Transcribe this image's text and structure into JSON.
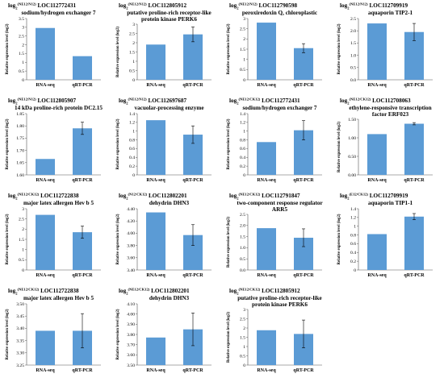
{
  "figure": {
    "background": "#ffffff",
    "bar_color": "#5b9bd5"
  },
  "chart_data": [
    {
      "type": "bar",
      "title_prefix": "log",
      "title_sup": "(NE12/N12)",
      "title_sub": "2",
      "title_line1": "LOC112772431",
      "title_line2": "sodium/hydrogen exchanger 7",
      "ylabel": "Relative expression level (log2)",
      "categories": [
        "RNA-seq",
        "qRT-PCR"
      ],
      "values": [
        2.96,
        1.35
      ],
      "errors": [
        0,
        0
      ],
      "ylim": [
        0,
        3.5
      ],
      "yticks": [
        "0",
        "0.5",
        "1",
        "1.5",
        "2",
        "2.5",
        "3",
        "3.5"
      ],
      "grid": false
    },
    {
      "type": "bar",
      "title_prefix": "log",
      "title_sup": "(NE12/N12)",
      "title_sub": "2",
      "title_line1": "LOC112805912",
      "title_line2": "putative proline-rich receptor-like protein kinase PERK6",
      "ylabel": "Relative expression level (log2)",
      "categories": [
        "RNA-seq",
        "qRT-PCR"
      ],
      "values": [
        1.9,
        2.45
      ],
      "errors": [
        0,
        0.4
      ],
      "ylim": [
        0,
        3
      ],
      "yticks": [
        "0",
        "0.5",
        "1",
        "1.5",
        "2",
        "2.5",
        "3"
      ],
      "grid": false
    },
    {
      "type": "bar",
      "title_prefix": "log",
      "title_sup": "(NE12/N12)",
      "title_sub": "2",
      "title_line1": "LOC112790598",
      "title_line2": "peroxiredoxin Q, chloroplastic",
      "ylabel": "Relative expression level (log2)",
      "categories": [
        "RNA-seq",
        "qRT-PCR"
      ],
      "values": [
        2.8,
        1.55
      ],
      "errors": [
        0,
        0.22
      ],
      "ylim": [
        0,
        3
      ],
      "yticks": [
        "0",
        "0.5",
        "1",
        "1.5",
        "2",
        "2.5",
        "3"
      ],
      "grid": false
    },
    {
      "type": "bar",
      "title_prefix": "log",
      "title_sup": "(NE12/N12)",
      "title_sub": "2",
      "title_line1": "LOC112709919",
      "title_line2": "aquaporin TIP2-1",
      "ylabel": "Relative expression level (log2)",
      "categories": [
        "RNA-seq",
        "qRT-PCR"
      ],
      "values": [
        2.3,
        1.95
      ],
      "errors": [
        0,
        0.35
      ],
      "ylim": [
        0,
        2.5
      ],
      "yticks": [
        "0.0",
        "0.5",
        "1.0",
        "1.5",
        "2.0",
        "2.5"
      ],
      "grid": false
    },
    {
      "type": "bar",
      "title_prefix": "log",
      "title_sup": "(NE12/N12)",
      "title_sub": "2",
      "title_line1": "LOC112805907",
      "title_line2": "14 kDa proline-rich protein DC2.15",
      "ylabel": "Relative expression level (log2)",
      "categories": [
        "RNA-seq",
        "qRT-PCR"
      ],
      "values": [
        1.665,
        1.79
      ],
      "errors": [
        0,
        0.025
      ],
      "ylim": [
        1.6,
        1.85
      ],
      "yticks": [
        "1.60",
        "1.65",
        "1.70",
        "1.75",
        "1.80",
        "1.85"
      ],
      "grid": false
    },
    {
      "type": "bar",
      "title_prefix": "log",
      "title_sup": "(NE12/N12)",
      "title_sub": "2",
      "title_line1": "LOC112697687",
      "title_line2": "vacuolar-processing enzyme",
      "ylabel": "Relative expression level (log2)",
      "categories": [
        "RNA-seq",
        "qRT-PCR"
      ],
      "values": [
        1.25,
        0.92
      ],
      "errors": [
        0,
        0.2
      ],
      "ylim": [
        0,
        1.4
      ],
      "yticks": [
        "0",
        "0.2",
        "0.4",
        "0.6",
        "0.8",
        "1",
        "1.2",
        "1.4"
      ],
      "grid": false
    },
    {
      "type": "bar",
      "title_prefix": "log",
      "title_sup": "(NE12/CK12)",
      "title_sub": "2",
      "title_line1": "LOC112772431",
      "title_line2": "sodium/hydrogen exchanger 7",
      "ylabel": "Relative expression level (log2)",
      "categories": [
        "RNA-seq",
        "qRT-PCR"
      ],
      "values": [
        0.75,
        1.02
      ],
      "errors": [
        0,
        0.22
      ],
      "ylim": [
        0,
        1.4
      ],
      "yticks": [
        "0",
        "0.2",
        "0.4",
        "0.6",
        "0.8",
        "1",
        "1.2",
        "1.4"
      ],
      "grid": false
    },
    {
      "type": "bar",
      "title_prefix": "log",
      "title_sup": "(NE12/CK12)",
      "title_sub": "2",
      "title_line1": "LOC112708063",
      "title_line2": "ethylene-responsive transcription factor ERF023",
      "ylabel": "Relative expression level (log2)",
      "categories": [
        "RNA-seq",
        "qRT-PCR"
      ],
      "values": [
        1.1,
        1.38
      ],
      "errors": [
        0,
        0.03
      ],
      "ylim": [
        0,
        1.5
      ],
      "yticks": [
        "0.00",
        "0.50",
        "1.00",
        "1.50"
      ],
      "grid": false
    },
    {
      "type": "bar",
      "title_prefix": "log",
      "title_sup": "(NE12/CK12)",
      "title_sub": "2",
      "title_line1": "LOC112722838",
      "title_line2": "major latex allergen Hev b 5",
      "ylabel": "Relative expression level (log2)",
      "categories": [
        "RNA-seq",
        "qRT-PCR"
      ],
      "values": [
        2.7,
        1.85
      ],
      "errors": [
        0,
        0.3
      ],
      "ylim": [
        0,
        3
      ],
      "yticks": [
        "0",
        "0.5",
        "1",
        "1.5",
        "2",
        "2.5",
        "3"
      ],
      "grid": false
    },
    {
      "type": "bar",
      "title_prefix": "log",
      "title_sup": "(N12/CK12)",
      "title_sub": "2",
      "title_line1": "LOC112802201",
      "title_line2": "dehydrin DHN3",
      "ylabel": "Relative expression level (log2)",
      "categories": [
        "RNA-seq",
        "qRT-PCR"
      ],
      "values": [
        4.34,
        3.97
      ],
      "errors": [
        0,
        0.17
      ],
      "ylim": [
        3.4,
        4.4
      ],
      "yticks": [
        "3.40",
        "3.60",
        "3.80",
        "4.00",
        "4.20",
        "4.40"
      ],
      "grid": false
    },
    {
      "type": "bar",
      "title_prefix": "log",
      "title_sup": "(NE12/CK12)",
      "title_sub": "2",
      "title_line1": "LOC112791847",
      "title_line2": "two-component response regulator ARR5",
      "ylabel": "Relative expression level (log2)",
      "categories": [
        "RNA-seq",
        "qRT-PCR"
      ],
      "values": [
        1.88,
        1.45
      ],
      "errors": [
        0,
        0.4
      ],
      "ylim": [
        0,
        2.5
      ],
      "yticks": [
        "0.0",
        "0.5",
        "1.0",
        "1.5",
        "2.0",
        "2.5"
      ],
      "grid": false
    },
    {
      "type": "bar",
      "title_prefix": "log",
      "title_sup": "(E12/CK12)",
      "title_sub": "2",
      "title_line1": "LOC112709919",
      "title_line2": "aquaporin TIP1-1",
      "ylabel": "Relative expression level (log2)",
      "categories": [
        "RNA-seq",
        "qRT-PCR"
      ],
      "values": [
        0.82,
        1.22
      ],
      "errors": [
        0,
        0.07
      ],
      "ylim": [
        0,
        1.4
      ],
      "yticks": [
        "0",
        "0.2",
        "0.4",
        "0.6",
        "0.8",
        "1",
        "1.2",
        "1.4"
      ],
      "grid": false
    },
    {
      "type": "bar",
      "title_prefix": "log",
      "title_sup": "(NE12/CK12)",
      "title_sub": "2",
      "title_line1": "LOC112722838",
      "title_line2": "major latex allergen Hev b 5",
      "ylabel": "Relative expression level (log2)",
      "categories": [
        "RNA-seq",
        "qRT-PCR"
      ],
      "values": [
        3.39,
        3.39
      ],
      "errors": [
        0,
        0.07
      ],
      "ylim": [
        3.25,
        3.5
      ],
      "yticks": [
        "3.25",
        "3.30",
        "3.35",
        "3.40",
        "3.45",
        "3.50"
      ],
      "grid": false
    },
    {
      "type": "bar",
      "title_prefix": "log",
      "title_sup": "(NE12/CK12)",
      "title_sub": "2",
      "title_line1": "LOC112802201",
      "title_line2": "dehydrin DHN3",
      "ylabel": "Relative expression level (log2)",
      "categories": [
        "RNA-seq",
        "qRT-PCR"
      ],
      "values": [
        3.77,
        3.85
      ],
      "errors": [
        0,
        0.16
      ],
      "ylim": [
        3.5,
        4.1
      ],
      "yticks": [
        "3.50",
        "3.60",
        "3.70",
        "3.80",
        "3.90",
        "4.00",
        "4.10"
      ],
      "grid": false
    },
    {
      "type": "bar",
      "title_prefix": "log",
      "title_sup": "(NE12/CK12)",
      "title_sub": "2",
      "title_line1": "LOC112805912",
      "title_line2": "putative proline-rich receptor-like protein kinase PERK6",
      "ylabel": "Relative expression level (log2)",
      "categories": [
        "RNA-seq",
        "qRT-PCR"
      ],
      "values": [
        1.88,
        1.68
      ],
      "errors": [
        0,
        0.75
      ],
      "ylim": [
        0,
        3
      ],
      "yticks": [
        "0",
        "0.5",
        "1",
        "1.5",
        "2",
        "2.5",
        "3"
      ],
      "grid": false
    }
  ]
}
